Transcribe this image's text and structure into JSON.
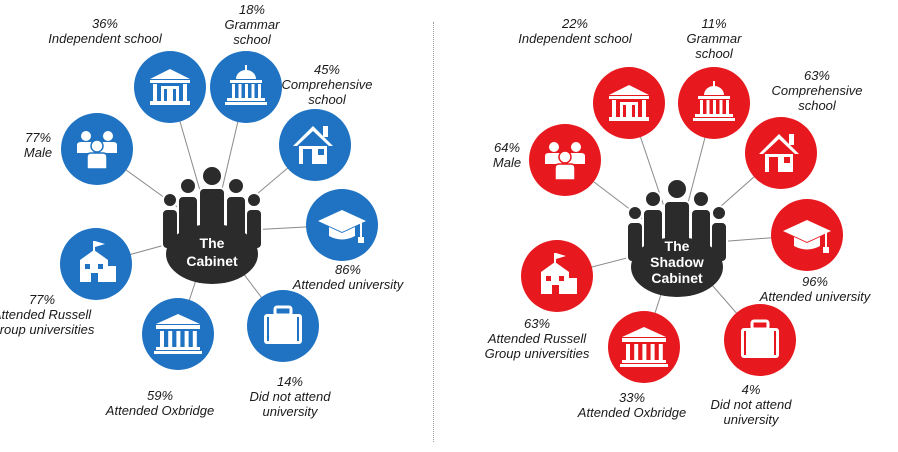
{
  "colors": {
    "cabinet": "#1f73c2",
    "shadow": "#e8191e",
    "hub": "#2b2b2b",
    "line": "#8a8a8a"
  },
  "cabinet": {
    "title_lines": [
      "The",
      "Cabinet"
    ],
    "items": [
      {
        "key": "independent",
        "icon": "building-icon",
        "pct": "36%",
        "text": "Independent school"
      },
      {
        "key": "grammar",
        "icon": "domed-building-icon",
        "pct": "18%",
        "text": "Grammar\nschool"
      },
      {
        "key": "comprehensive",
        "icon": "house-icon",
        "pct": "45%",
        "text": "Comprehensive\nschool"
      },
      {
        "key": "attended-university",
        "icon": "graduation-cap-icon",
        "pct": "86%",
        "text": "Attended university"
      },
      {
        "key": "did-not-attend",
        "icon": "briefcase-icon",
        "pct": "14%",
        "text": "Did not attend\nuniversity"
      },
      {
        "key": "oxbridge",
        "icon": "columns-building-icon",
        "pct": "59%",
        "text": "Attended Oxbridge"
      },
      {
        "key": "russell-group",
        "icon": "schoolhouse-icon",
        "pct": "77%",
        "text": "Attended Russell\nGroup universities"
      },
      {
        "key": "male",
        "icon": "people-icon",
        "pct": "77%",
        "text": "Male"
      }
    ]
  },
  "shadow": {
    "title_lines": [
      "The",
      "Shadow",
      "Cabinet"
    ],
    "items": [
      {
        "key": "independent",
        "icon": "building-icon",
        "pct": "22%",
        "text": "Independent school"
      },
      {
        "key": "grammar",
        "icon": "domed-building-icon",
        "pct": "11%",
        "text": "Grammar\nschool"
      },
      {
        "key": "comprehensive",
        "icon": "house-icon",
        "pct": "63%",
        "text": "Comprehensive\nschool"
      },
      {
        "key": "attended-university",
        "icon": "graduation-cap-icon",
        "pct": "96%",
        "text": "Attended university"
      },
      {
        "key": "did-not-attend",
        "icon": "briefcase-icon",
        "pct": "4%",
        "text": "Did not attend\nuniversity"
      },
      {
        "key": "oxbridge",
        "icon": "columns-building-icon",
        "pct": "33%",
        "text": "Attended Oxbridge"
      },
      {
        "key": "russell-group",
        "icon": "schoolhouse-icon",
        "pct": "63%",
        "text": "Attended Russell\nGroup universities"
      },
      {
        "key": "male",
        "icon": "people-icon",
        "pct": "64%",
        "text": "Male"
      }
    ]
  }
}
